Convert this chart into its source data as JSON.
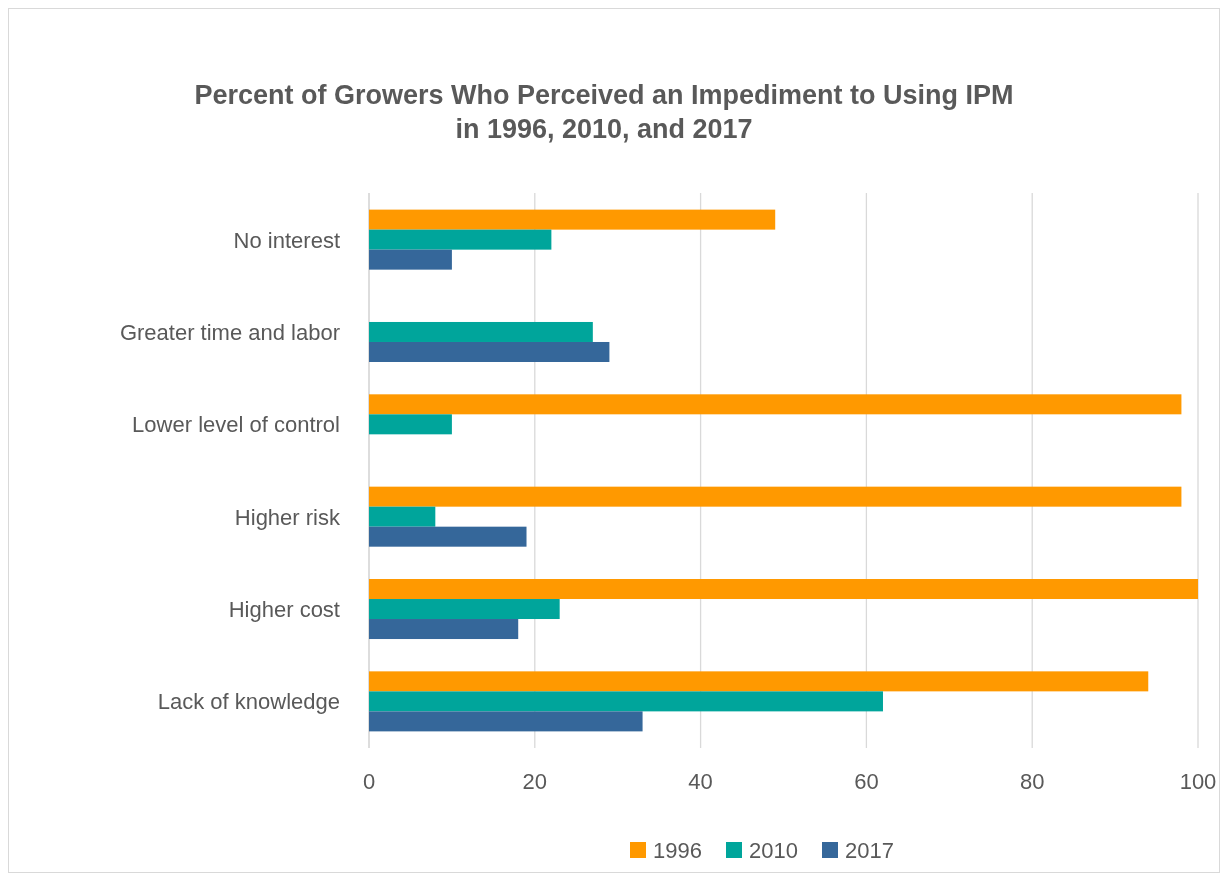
{
  "chart_data": {
    "type": "bar",
    "orientation": "horizontal",
    "title": "Percent of Growers Who Perceived an Impediment to Using IPM in 1996, 2010, and 2017",
    "categories": [
      "No interest",
      "Greater time and labor",
      "Lower level of control",
      "Higher risk",
      "Higher cost",
      "Lack of knowledge"
    ],
    "series": [
      {
        "name": "1996",
        "color": "#ff9900",
        "values": [
          49,
          null,
          98,
          98,
          100,
          94
        ]
      },
      {
        "name": "2010",
        "color": "#00a59b",
        "values": [
          22,
          27,
          10,
          8,
          23,
          62
        ]
      },
      {
        "name": "2017",
        "color": "#35679a",
        "values": [
          10,
          29,
          null,
          19,
          18,
          33
        ]
      }
    ],
    "xlim": [
      0,
      100
    ],
    "xticks": [
      0,
      20,
      40,
      60,
      80,
      100
    ],
    "grid": "x",
    "legend": "bottom"
  }
}
